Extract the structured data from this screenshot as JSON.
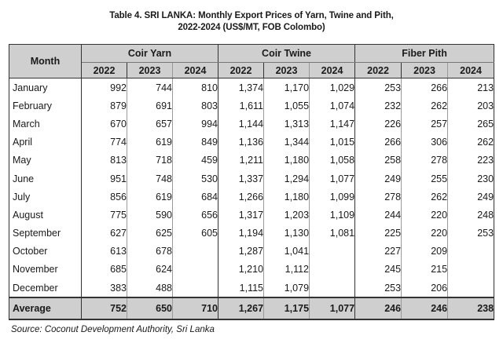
{
  "title_line1": "Table 4. SRI LANKA: Monthly Export Prices of Yarn, Twine and Pith,",
  "title_line2": "2022-2024 (US$/MT, FOB Colombo)",
  "month_header": "Month",
  "groups": [
    "Coir Yarn",
    "Coir Twine",
    "Fiber Pith"
  ],
  "years": [
    "2022",
    "2023",
    "2024",
    "2022",
    "2023",
    "2024",
    "2022",
    "2023",
    "2024"
  ],
  "rows": [
    {
      "month": "January",
      "v": [
        "992",
        "744",
        "810",
        "1,374",
        "1,170",
        "1,029",
        "253",
        "266",
        "213"
      ]
    },
    {
      "month": "February",
      "v": [
        "879",
        "691",
        "803",
        "1,611",
        "1,055",
        "1,074",
        "232",
        "262",
        "203"
      ]
    },
    {
      "month": "March",
      "v": [
        "670",
        "657",
        "994",
        "1,144",
        "1,313",
        "1,147",
        "226",
        "257",
        "265"
      ]
    },
    {
      "month": "April",
      "v": [
        "774",
        "619",
        "849",
        "1,136",
        "1,344",
        "1,015",
        "266",
        "306",
        "262"
      ]
    },
    {
      "month": "May",
      "v": [
        "813",
        "718",
        "459",
        "1,211",
        "1,180",
        "1,058",
        "258",
        "278",
        "223"
      ]
    },
    {
      "month": "June",
      "v": [
        "951",
        "748",
        "530",
        "1,337",
        "1,294",
        "1,077",
        "249",
        "255",
        "230"
      ]
    },
    {
      "month": "July",
      "v": [
        "856",
        "619",
        "684",
        "1,266",
        "1,180",
        "1,099",
        "278",
        "262",
        "249"
      ]
    },
    {
      "month": "August",
      "v": [
        "775",
        "590",
        "656",
        "1,317",
        "1,203",
        "1,109",
        "244",
        "220",
        "248"
      ]
    },
    {
      "month": "September",
      "v": [
        "627",
        "625",
        "605",
        "1,194",
        "1,130",
        "1,081",
        "225",
        "220",
        "253"
      ]
    },
    {
      "month": "October",
      "v": [
        "613",
        "678",
        "",
        "1,287",
        "1,041",
        "",
        "227",
        "209",
        ""
      ]
    },
    {
      "month": "November",
      "v": [
        "685",
        "624",
        "",
        "1,210",
        "1,112",
        "",
        "245",
        "215",
        ""
      ]
    },
    {
      "month": "December",
      "v": [
        "383",
        "488",
        "",
        "1,115",
        "1,079",
        "",
        "253",
        "206",
        ""
      ]
    }
  ],
  "average": {
    "label": "Average",
    "v": [
      "752",
      "650",
      "710",
      "1,267",
      "1,175",
      "1,077",
      "246",
      "246",
      "238"
    ]
  },
  "source": "Source: Coconut Development Authority, Sri Lanka"
}
